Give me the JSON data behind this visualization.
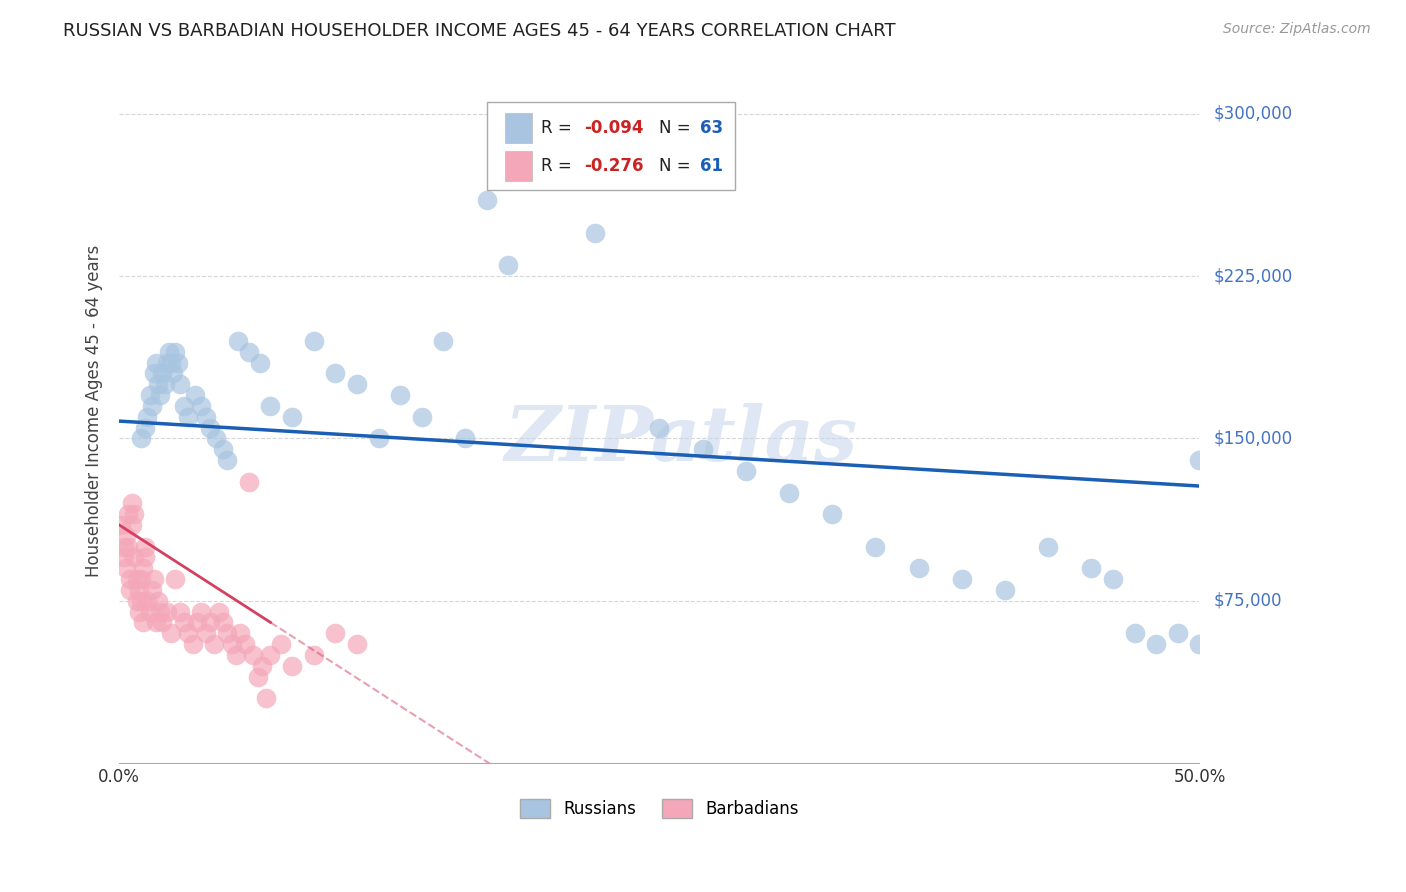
{
  "title": "RUSSIAN VS BARBADIAN HOUSEHOLDER INCOME AGES 45 - 64 YEARS CORRELATION CHART",
  "source": "Source: ZipAtlas.com",
  "ylabel": "Householder Income Ages 45 - 64 years",
  "xlim": [
    0.0,
    0.5
  ],
  "ylim": [
    0,
    325000
  ],
  "ytick_positions": [
    75000,
    150000,
    225000,
    300000
  ],
  "ytick_labels": [
    "$75,000",
    "$150,000",
    "$225,000",
    "$300,000"
  ],
  "russian_color": "#a8c4e0",
  "barbadian_color": "#f4a7b9",
  "russian_line_color": "#1a5fb4",
  "barbadian_line_color": "#d44060",
  "watermark": "ZIPatlas",
  "background_color": "#ffffff",
  "grid_color": "#cccccc",
  "russian_x": [
    0.01,
    0.012,
    0.013,
    0.014,
    0.015,
    0.016,
    0.017,
    0.018,
    0.019,
    0.02,
    0.021,
    0.022,
    0.023,
    0.024,
    0.025,
    0.026,
    0.027,
    0.028,
    0.03,
    0.032,
    0.035,
    0.038,
    0.04,
    0.042,
    0.045,
    0.048,
    0.05,
    0.055,
    0.06,
    0.065,
    0.07,
    0.08,
    0.09,
    0.1,
    0.11,
    0.12,
    0.13,
    0.14,
    0.15,
    0.16,
    0.17,
    0.18,
    0.19,
    0.2,
    0.21,
    0.22,
    0.25,
    0.27,
    0.29,
    0.31,
    0.33,
    0.35,
    0.37,
    0.39,
    0.41,
    0.43,
    0.45,
    0.46,
    0.47,
    0.48,
    0.49,
    0.5,
    0.5
  ],
  "russian_y": [
    150000,
    155000,
    160000,
    170000,
    165000,
    180000,
    185000,
    175000,
    170000,
    180000,
    175000,
    185000,
    190000,
    185000,
    180000,
    190000,
    185000,
    175000,
    165000,
    160000,
    170000,
    165000,
    160000,
    155000,
    150000,
    145000,
    140000,
    195000,
    190000,
    185000,
    165000,
    160000,
    195000,
    180000,
    175000,
    150000,
    170000,
    160000,
    195000,
    150000,
    260000,
    230000,
    270000,
    275000,
    270000,
    245000,
    155000,
    145000,
    135000,
    125000,
    115000,
    100000,
    90000,
    85000,
    80000,
    100000,
    90000,
    85000,
    60000,
    55000,
    60000,
    55000,
    140000
  ],
  "barbadian_x": [
    0.001,
    0.002,
    0.002,
    0.003,
    0.003,
    0.004,
    0.004,
    0.005,
    0.005,
    0.006,
    0.006,
    0.007,
    0.007,
    0.008,
    0.008,
    0.009,
    0.009,
    0.01,
    0.01,
    0.011,
    0.011,
    0.012,
    0.012,
    0.013,
    0.014,
    0.015,
    0.016,
    0.017,
    0.018,
    0.019,
    0.02,
    0.022,
    0.024,
    0.026,
    0.028,
    0.03,
    0.032,
    0.034,
    0.036,
    0.038,
    0.04,
    0.042,
    0.044,
    0.046,
    0.048,
    0.05,
    0.052,
    0.054,
    0.056,
    0.058,
    0.06,
    0.062,
    0.064,
    0.066,
    0.068,
    0.07,
    0.075,
    0.08,
    0.09,
    0.1,
    0.11
  ],
  "barbadian_y": [
    110000,
    100000,
    95000,
    90000,
    105000,
    100000,
    115000,
    80000,
    85000,
    110000,
    120000,
    115000,
    95000,
    85000,
    75000,
    70000,
    80000,
    85000,
    75000,
    90000,
    65000,
    95000,
    100000,
    75000,
    70000,
    80000,
    85000,
    65000,
    75000,
    70000,
    65000,
    70000,
    60000,
    85000,
    70000,
    65000,
    60000,
    55000,
    65000,
    70000,
    60000,
    65000,
    55000,
    70000,
    65000,
    60000,
    55000,
    50000,
    60000,
    55000,
    130000,
    50000,
    40000,
    45000,
    30000,
    50000,
    55000,
    45000,
    50000,
    60000,
    55000
  ]
}
